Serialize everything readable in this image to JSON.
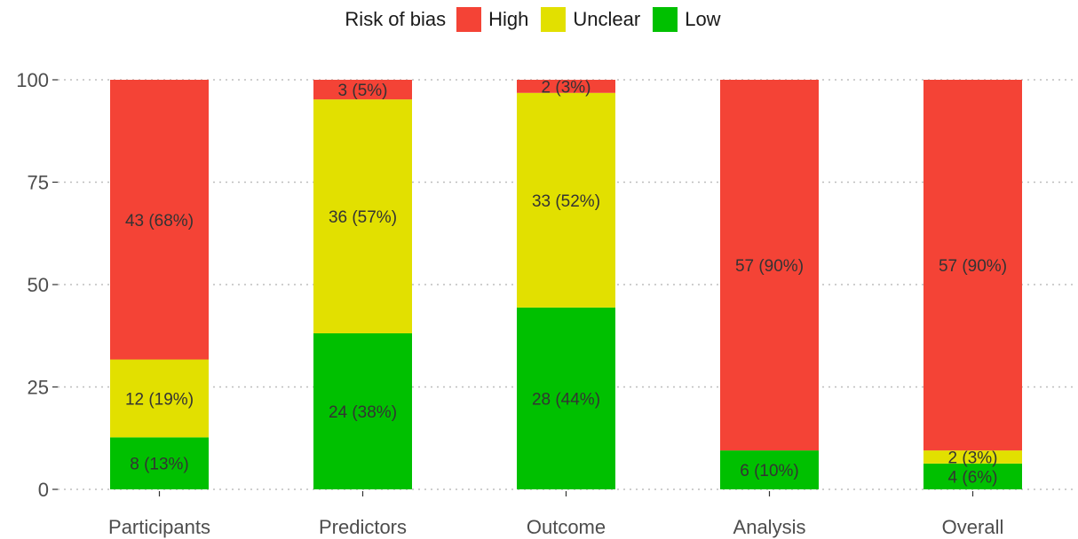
{
  "chart_data": {
    "type": "bar",
    "stacked": true,
    "legend": {
      "title": "Risk of bias",
      "position": "top",
      "entries": [
        {
          "name": "High",
          "color": "#f44336"
        },
        {
          "name": "Unclear",
          "color": "#e2e000"
        },
        {
          "name": "Low",
          "color": "#00c000"
        }
      ]
    },
    "categories": [
      "Participants",
      "Predictors",
      "Outcome",
      "Analysis",
      "Overall"
    ],
    "ylim": [
      0,
      100
    ],
    "yticks": [
      "0",
      "25",
      "50",
      "75",
      "100"
    ],
    "grid": "horizontal dotted",
    "series": [
      {
        "name": "Low",
        "color": "#00c000",
        "values": [
          12.7,
          38.1,
          44.4,
          9.5,
          6.3
        ],
        "labels": [
          "8 (13%)",
          "24 (38%)",
          "28 (44%)",
          "6 (10%)",
          "4 (6%)"
        ]
      },
      {
        "name": "Unclear",
        "color": "#e2e000",
        "values": [
          19.0,
          57.1,
          52.4,
          0,
          3.2
        ],
        "labels": [
          "12 (19%)",
          "36 (57%)",
          "33 (52%)",
          "",
          "2 (3%)"
        ]
      },
      {
        "name": "High",
        "color": "#f44336",
        "values": [
          68.3,
          4.8,
          3.2,
          90.5,
          90.5
        ],
        "labels": [
          "43 (68%)",
          "3 (5%)",
          "2 (3%)",
          "57 (90%)",
          "57 (90%)"
        ]
      }
    ]
  }
}
